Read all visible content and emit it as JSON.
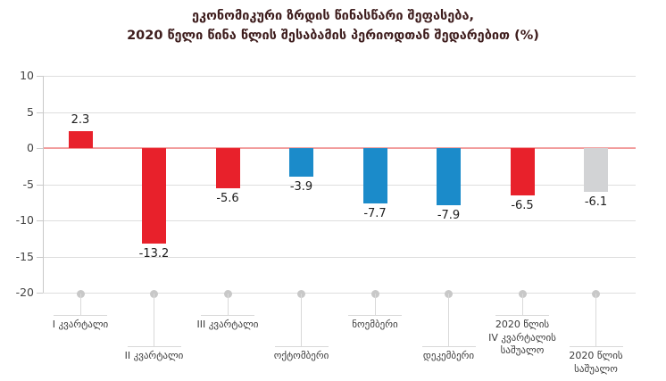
{
  "chart_data": {
    "type": "bar",
    "title_line1": "ეკონომიკური ზრდის წინასწარი შეფასება,",
    "title_line2": "2020 წელი წინა წლის შესაბამის პერიოდთან შედარებით (%)",
    "categories": [
      "I კვარტალი",
      "II კვარტალი",
      "III კვარტალი",
      "ოქტომბერი",
      "ნოემბერი",
      "დეკემბერი",
      "2020 წლის IV კვარტალის საშუალო",
      "2020 წლის საშუალო"
    ],
    "category_lines": [
      [
        "I კვარტალი"
      ],
      [
        "II კვარტალი"
      ],
      [
        "III კვარტალი"
      ],
      [
        "ოქტომბერი"
      ],
      [
        "ნოემბერი"
      ],
      [
        "დეკემბერი"
      ],
      [
        "2020 წლის",
        "IV კვარტალის",
        "საშუალო"
      ],
      [
        "2020 წლის",
        "საშუალო"
      ]
    ],
    "values": [
      2.3,
      -13.2,
      -5.6,
      -3.9,
      -7.7,
      -7.9,
      -6.5,
      -6.1
    ],
    "value_labels": [
      "2.3",
      "-13.2",
      "-5.6",
      "-3.9",
      "-7.7",
      "-7.9",
      "-6.5",
      "-6.1"
    ],
    "bar_colors": [
      "#e8212b",
      "#e8212b",
      "#e8212b",
      "#1b8bca",
      "#1b8bca",
      "#1b8bca",
      "#e8212b",
      "#d2d3d5"
    ],
    "label_row": [
      "upper",
      "lower",
      "upper",
      "lower",
      "upper",
      "lower",
      "upper",
      "lower"
    ],
    "y_ticks": [
      10,
      5,
      0,
      -5,
      -10,
      -15,
      -20
    ],
    "ylim": [
      -20,
      10
    ],
    "xlabel": "",
    "ylabel": "",
    "grid": true,
    "legend": "none",
    "colors": {
      "red": "#e8212b",
      "blue": "#1b8bca",
      "gray": "#d2d3d5",
      "zero_line": "#f29c9c",
      "grid_line": "#dedede",
      "axis_line": "#c9c9c9",
      "dot": "#c8c8c8",
      "title_text": "#3e1d1d",
      "axis_text": "#444444",
      "x_label_text": "#3c3c3c",
      "value_text": "#1d1d1d"
    }
  }
}
